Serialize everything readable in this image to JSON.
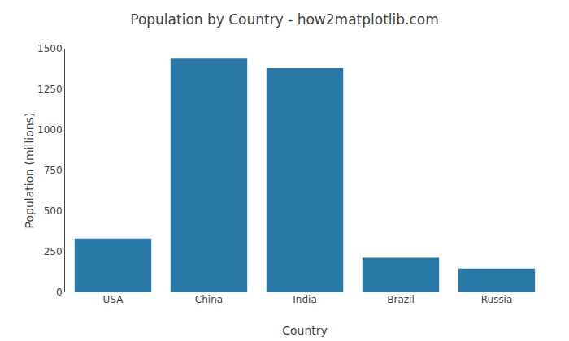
{
  "chart_data": {
    "type": "bar",
    "title": "Population by Country - how2matplotlib.com",
    "xlabel": "Country",
    "ylabel": "Population (millions)",
    "categories": [
      "USA",
      "China",
      "India",
      "Brazil",
      "Russia"
    ],
    "values": [
      331,
      1439,
      1380,
      212,
      146
    ],
    "color": "#2878a8",
    "ylim": [
      0,
      1500
    ],
    "yticks": [
      0,
      250,
      500,
      750,
      1000,
      1250,
      1500
    ],
    "grid": false
  }
}
